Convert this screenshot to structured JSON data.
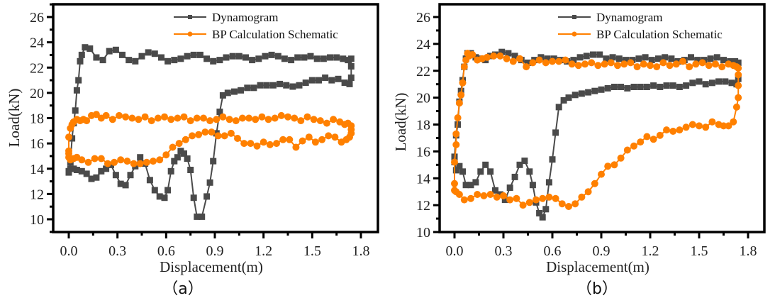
{
  "colors": {
    "dynamogram": "#4a4a4a",
    "bp": "#ff8000",
    "axis": "#000000"
  },
  "chart_data": [
    {
      "type": "line",
      "caption": "（a）",
      "xlabel": "Displacement(m)",
      "ylabel": "Load(kN)",
      "xlim": [
        -0.08,
        1.84
      ],
      "ylim": [
        9,
        27
      ],
      "xticks": [
        0.0,
        0.3,
        0.6,
        0.9,
        1.2,
        1.5,
        1.8
      ],
      "xtick_labels": [
        "0.0",
        "0.3",
        "0.6",
        "0.9",
        "1.2",
        "1.5",
        "1.8"
      ],
      "yticks": [
        10,
        12,
        14,
        16,
        18,
        20,
        22,
        24,
        26
      ],
      "ytick_labels": [
        "10",
        "12",
        "14",
        "16",
        "18",
        "20",
        "22",
        "24",
        "26"
      ],
      "legend": {
        "placement": "top-right",
        "entries": [
          "Dynamogram",
          "BP Calculation Schematic"
        ]
      },
      "grid": false,
      "series": [
        {
          "name": "Dynamogram",
          "marker": "square",
          "x": [
            0.0,
            0.01,
            0.02,
            0.03,
            0.04,
            0.05,
            0.06,
            0.07,
            0.08,
            0.1,
            0.13,
            0.17,
            0.21,
            0.25,
            0.29,
            0.33,
            0.37,
            0.41,
            0.45,
            0.49,
            0.53,
            0.57,
            0.61,
            0.65,
            0.69,
            0.73,
            0.77,
            0.81,
            0.85,
            0.89,
            0.93,
            0.97,
            1.01,
            1.05,
            1.09,
            1.13,
            1.17,
            1.21,
            1.25,
            1.29,
            1.33,
            1.37,
            1.41,
            1.45,
            1.49,
            1.53,
            1.57,
            1.61,
            1.65,
            1.69,
            1.72,
            1.74,
            1.74,
            1.74,
            1.73,
            1.7,
            1.66,
            1.62,
            1.58,
            1.54,
            1.5,
            1.46,
            1.42,
            1.38,
            1.34,
            1.3,
            1.26,
            1.22,
            1.18,
            1.14,
            1.1,
            1.06,
            1.02,
            0.98,
            0.95,
            0.93,
            0.91,
            0.89,
            0.87,
            0.85,
            0.82,
            0.79,
            0.77,
            0.75,
            0.73,
            0.71,
            0.69,
            0.67,
            0.65,
            0.63,
            0.61,
            0.59,
            0.56,
            0.53,
            0.5,
            0.47,
            0.44,
            0.41,
            0.38,
            0.35,
            0.32,
            0.29,
            0.26,
            0.23,
            0.2,
            0.17,
            0.14,
            0.11,
            0.08,
            0.05,
            0.03,
            0.01,
            0.0
          ],
          "y": [
            13.7,
            14.5,
            16.4,
            17.6,
            18.6,
            20.2,
            21.0,
            22.5,
            23.0,
            23.6,
            23.5,
            22.8,
            22.6,
            23.3,
            23.4,
            23.0,
            22.6,
            22.5,
            22.9,
            23.2,
            23.1,
            22.8,
            22.5,
            22.6,
            22.7,
            22.9,
            23.0,
            23.0,
            22.7,
            22.5,
            22.6,
            22.8,
            22.9,
            22.9,
            22.8,
            22.6,
            22.7,
            22.9,
            23.0,
            22.9,
            22.7,
            22.6,
            22.8,
            22.8,
            22.9,
            22.7,
            22.7,
            22.8,
            22.8,
            22.7,
            22.6,
            22.7,
            22.1,
            21.2,
            20.7,
            20.8,
            21.1,
            21.0,
            21.2,
            21.0,
            21.0,
            20.8,
            20.6,
            20.5,
            20.6,
            20.7,
            20.6,
            20.6,
            20.6,
            20.4,
            20.4,
            20.2,
            20.1,
            20.0,
            19.8,
            18.5,
            16.8,
            14.6,
            12.9,
            11.8,
            10.2,
            10.2,
            11.7,
            13.9,
            14.8,
            15.2,
            15.4,
            14.9,
            14.6,
            13.8,
            12.3,
            11.7,
            11.8,
            12.3,
            13.1,
            14.4,
            14.9,
            14.2,
            13.5,
            12.7,
            12.8,
            13.5,
            14.3,
            14.0,
            13.8,
            13.3,
            13.2,
            13.6,
            13.8,
            13.9,
            14.0,
            14.0,
            13.8
          ]
        },
        {
          "name": "BP Calculation Schematic",
          "marker": "circle",
          "x": [
            0.0,
            0.0,
            0.01,
            0.02,
            0.03,
            0.05,
            0.07,
            0.09,
            0.11,
            0.14,
            0.17,
            0.2,
            0.23,
            0.27,
            0.31,
            0.35,
            0.39,
            0.43,
            0.47,
            0.51,
            0.55,
            0.59,
            0.63,
            0.67,
            0.71,
            0.75,
            0.79,
            0.83,
            0.87,
            0.91,
            0.95,
            0.99,
            1.03,
            1.07,
            1.11,
            1.15,
            1.19,
            1.23,
            1.27,
            1.31,
            1.35,
            1.39,
            1.43,
            1.47,
            1.51,
            1.55,
            1.59,
            1.63,
            1.67,
            1.7,
            1.72,
            1.74,
            1.74,
            1.74,
            1.73,
            1.71,
            1.68,
            1.64,
            1.6,
            1.56,
            1.52,
            1.48,
            1.44,
            1.4,
            1.36,
            1.32,
            1.28,
            1.24,
            1.2,
            1.16,
            1.12,
            1.08,
            1.04,
            1.0,
            0.96,
            0.92,
            0.88,
            0.84,
            0.8,
            0.76,
            0.72,
            0.68,
            0.64,
            0.6,
            0.56,
            0.52,
            0.48,
            0.44,
            0.4,
            0.36,
            0.32,
            0.28,
            0.24,
            0.2,
            0.16,
            0.12,
            0.08,
            0.05,
            0.03,
            0.01,
            0.0,
            0.0
          ],
          "y": [
            15.2,
            16.5,
            17.2,
            17.5,
            17.7,
            17.9,
            17.8,
            17.9,
            17.8,
            18.2,
            18.3,
            18.0,
            18.2,
            17.9,
            18.2,
            18.1,
            18.0,
            17.9,
            18.1,
            17.8,
            18.0,
            18.1,
            17.9,
            18.0,
            18.1,
            17.8,
            18.0,
            18.0,
            17.8,
            17.9,
            18.1,
            17.9,
            17.8,
            18.0,
            18.0,
            17.9,
            18.1,
            17.9,
            18.0,
            18.2,
            18.1,
            18.0,
            17.8,
            18.1,
            17.9,
            17.8,
            17.6,
            17.9,
            17.7,
            17.5,
            17.6,
            17.4,
            17.1,
            16.8,
            16.5,
            16.3,
            16.1,
            16.5,
            16.6,
            16.3,
            16.1,
            16.5,
            16.2,
            15.7,
            16.3,
            16.3,
            16.0,
            15.9,
            16.1,
            15.8,
            16.0,
            16.0,
            16.4,
            16.8,
            16.6,
            16.6,
            16.9,
            16.9,
            16.7,
            16.6,
            16.3,
            16.0,
            15.7,
            15.1,
            14.7,
            14.6,
            14.5,
            14.4,
            14.4,
            14.6,
            14.7,
            14.5,
            14.4,
            14.8,
            14.8,
            14.5,
            14.7,
            14.9,
            14.8,
            14.7,
            14.9,
            15.4
          ]
        }
      ]
    },
    {
      "type": "line",
      "caption": "（b）",
      "xlabel": "Displacement(m)",
      "ylabel": "Load(kN)",
      "xlim": [
        -0.08,
        1.84
      ],
      "ylim": [
        10,
        27
      ],
      "xticks": [
        0.0,
        0.3,
        0.6,
        0.9,
        1.2,
        1.5,
        1.8
      ],
      "xtick_labels": [
        "0.0",
        "0.3",
        "0.6",
        "0.9",
        "1.2",
        "1.5",
        "1.8"
      ],
      "yticks": [
        10,
        12,
        14,
        16,
        18,
        20,
        22,
        24,
        26
      ],
      "ytick_labels": [
        "10",
        "12",
        "14",
        "16",
        "18",
        "20",
        "22",
        "24",
        "26"
      ],
      "legend": {
        "placement": "top-right",
        "entries": [
          "Dynamogram",
          "BP Calculation Schematic"
        ]
      },
      "grid": false,
      "series": [
        {
          "name": "Dynamogram",
          "marker": "square",
          "x": [
            0.0,
            0.01,
            0.02,
            0.03,
            0.04,
            0.05,
            0.06,
            0.07,
            0.08,
            0.1,
            0.13,
            0.16,
            0.19,
            0.22,
            0.25,
            0.29,
            0.33,
            0.37,
            0.41,
            0.45,
            0.49,
            0.53,
            0.57,
            0.61,
            0.65,
            0.69,
            0.73,
            0.77,
            0.81,
            0.85,
            0.89,
            0.93,
            0.97,
            1.01,
            1.05,
            1.09,
            1.13,
            1.17,
            1.21,
            1.25,
            1.29,
            1.33,
            1.37,
            1.41,
            1.45,
            1.49,
            1.53,
            1.57,
            1.61,
            1.65,
            1.69,
            1.72,
            1.74,
            1.74,
            1.73,
            1.7,
            1.66,
            1.62,
            1.58,
            1.54,
            1.5,
            1.46,
            1.42,
            1.38,
            1.34,
            1.3,
            1.26,
            1.22,
            1.18,
            1.14,
            1.1,
            1.06,
            1.02,
            0.98,
            0.94,
            0.9,
            0.86,
            0.82,
            0.78,
            0.74,
            0.7,
            0.67,
            0.64,
            0.62,
            0.6,
            0.58,
            0.56,
            0.54,
            0.52,
            0.5,
            0.48,
            0.46,
            0.43,
            0.4,
            0.37,
            0.34,
            0.31,
            0.28,
            0.25,
            0.22,
            0.19,
            0.16,
            0.13,
            0.1,
            0.07,
            0.05,
            0.03,
            0.01,
            0.0
          ],
          "y": [
            15.6,
            17.2,
            18.0,
            19.7,
            20.5,
            21.3,
            22.3,
            22.9,
            23.3,
            23.3,
            23.0,
            22.9,
            22.8,
            23.1,
            23.2,
            23.4,
            23.3,
            23.1,
            22.8,
            22.6,
            22.8,
            23.0,
            22.9,
            22.9,
            22.8,
            22.7,
            22.8,
            23.0,
            23.1,
            23.2,
            23.2,
            22.9,
            23.0,
            22.9,
            22.8,
            22.8,
            22.9,
            23.0,
            22.8,
            22.9,
            23.0,
            22.9,
            22.7,
            22.8,
            23.0,
            22.8,
            22.8,
            22.9,
            23.0,
            22.8,
            22.7,
            22.7,
            22.6,
            21.4,
            21.0,
            21.1,
            21.2,
            21.2,
            21.1,
            21.0,
            21.2,
            21.1,
            20.9,
            20.8,
            20.9,
            20.9,
            20.8,
            20.9,
            20.8,
            20.8,
            20.8,
            20.7,
            20.8,
            20.8,
            20.7,
            20.6,
            20.5,
            20.4,
            20.3,
            20.2,
            20.0,
            19.8,
            19.3,
            17.4,
            15.4,
            13.7,
            11.7,
            11.1,
            11.4,
            12.2,
            13.5,
            14.5,
            15.3,
            15.0,
            14.1,
            13.3,
            12.4,
            12.8,
            13.1,
            14.5,
            15.0,
            14.5,
            13.7,
            13.5,
            13.5,
            14.5,
            14.9,
            14.6,
            15.2
          ]
        },
        {
          "name": "BP Calculation Schematic",
          "marker": "circle",
          "x": [
            0.0,
            0.0,
            0.01,
            0.01,
            0.02,
            0.03,
            0.04,
            0.05,
            0.06,
            0.07,
            0.08,
            0.09,
            0.11,
            0.14,
            0.17,
            0.2,
            0.24,
            0.28,
            0.32,
            0.36,
            0.4,
            0.44,
            0.48,
            0.52,
            0.56,
            0.6,
            0.64,
            0.68,
            0.72,
            0.76,
            0.8,
            0.84,
            0.88,
            0.92,
            0.96,
            1.0,
            1.04,
            1.08,
            1.12,
            1.16,
            1.2,
            1.24,
            1.28,
            1.32,
            1.36,
            1.4,
            1.44,
            1.48,
            1.52,
            1.56,
            1.6,
            1.64,
            1.68,
            1.71,
            1.73,
            1.74,
            1.74,
            1.74,
            1.74,
            1.73,
            1.71,
            1.68,
            1.65,
            1.62,
            1.58,
            1.54,
            1.5,
            1.46,
            1.42,
            1.38,
            1.34,
            1.3,
            1.26,
            1.22,
            1.18,
            1.14,
            1.1,
            1.06,
            1.02,
            0.98,
            0.94,
            0.9,
            0.86,
            0.82,
            0.78,
            0.74,
            0.7,
            0.66,
            0.62,
            0.58,
            0.54,
            0.5,
            0.46,
            0.42,
            0.38,
            0.34,
            0.3,
            0.26,
            0.22,
            0.18,
            0.14,
            0.1,
            0.06,
            0.03,
            0.01,
            0.0
          ],
          "y": [
            13.6,
            15.2,
            16.5,
            17.3,
            18.5,
            19.6,
            20.2,
            21.1,
            22.3,
            22.8,
            23.3,
            23.1,
            23.2,
            22.8,
            22.9,
            23.0,
            23.1,
            23.1,
            22.9,
            22.7,
            22.9,
            22.3,
            22.6,
            22.8,
            22.6,
            22.7,
            22.7,
            22.8,
            22.5,
            22.4,
            22.5,
            22.6,
            22.4,
            22.5,
            22.6,
            22.4,
            22.5,
            22.6,
            22.3,
            22.5,
            22.4,
            22.3,
            22.6,
            22.4,
            22.5,
            22.7,
            22.3,
            22.5,
            22.6,
            22.4,
            22.5,
            22.3,
            22.5,
            22.4,
            22.3,
            22.2,
            21.7,
            20.9,
            20.0,
            19.3,
            18.2,
            17.9,
            17.9,
            18.0,
            18.2,
            17.8,
            17.9,
            18.0,
            17.8,
            17.6,
            17.5,
            17.6,
            17.2,
            16.9,
            17.1,
            16.7,
            16.4,
            16.1,
            15.5,
            15.0,
            14.9,
            14.3,
            13.6,
            13.0,
            12.6,
            12.1,
            11.9,
            12.1,
            12.5,
            12.6,
            12.5,
            12.4,
            12.2,
            12.0,
            12.5,
            12.4,
            12.7,
            12.6,
            12.8,
            12.7,
            12.8,
            12.5,
            12.4,
            12.8,
            13.0,
            13.1
          ]
        }
      ]
    }
  ]
}
